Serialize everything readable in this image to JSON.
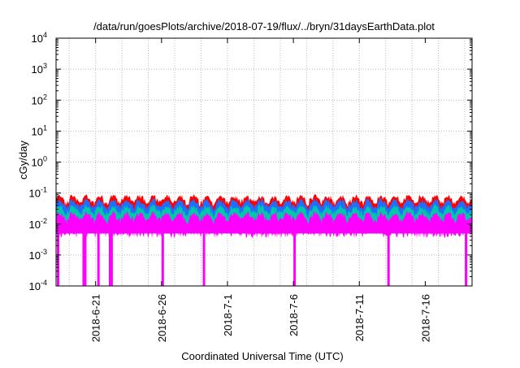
{
  "chart_data": {
    "type": "area",
    "title": "/data/run/goesPlots/archive/2018-07-19/flux/../bryn/31daysEarthData.plot",
    "xlabel": "Coordinated Universal Time (UTC)",
    "ylabel": "cGy/day",
    "y_scale": "log",
    "ylim": [
      0.0001,
      10000
    ],
    "y_ticks": [
      {
        "value": 0.0001,
        "base": "10",
        "exp": "-4"
      },
      {
        "value": 0.001,
        "base": "10",
        "exp": "-3"
      },
      {
        "value": 0.01,
        "base": "10",
        "exp": "-2"
      },
      {
        "value": 0.1,
        "base": "10",
        "exp": "-1"
      },
      {
        "value": 1,
        "base": "10",
        "exp": "0"
      },
      {
        "value": 10,
        "base": "10",
        "exp": "1"
      },
      {
        "value": 100,
        "base": "10",
        "exp": "2"
      },
      {
        "value": 1000,
        "base": "10",
        "exp": "3"
      },
      {
        "value": 10000,
        "base": "10",
        "exp": "4"
      }
    ],
    "xlim": [
      "2018-06-18",
      "2018-07-19"
    ],
    "x_ticks": [
      "2018-6-21",
      "2018-6-26",
      "2018-7-1",
      "2018-7-6",
      "2018-7-11",
      "2018-7-16"
    ],
    "x_tick_dates": [
      "2018-06-21",
      "2018-06-26",
      "2018-07-01",
      "2018-07-06",
      "2018-07-11",
      "2018-07-16"
    ],
    "x_tick_label_rotation": "vertical",
    "grid": true,
    "legend": "none",
    "colors": [
      "#ff0000",
      "#1f6fff",
      "#00c8a8",
      "#ff00ff"
    ],
    "series": [
      {
        "color": "#ff0000",
        "typical": 0.055,
        "max": 0.09
      },
      {
        "color": "#1f6fff",
        "typical": 0.04,
        "max": 0.07
      },
      {
        "color": "#00c8a8",
        "typical": 0.025,
        "max": 0.045
      },
      {
        "color": "#ff00ff",
        "typical": 0.015,
        "max": 0.035,
        "floor": 0.005,
        "dropouts": [
          "2018-06-18",
          "2018-06-20",
          "2018-06-20",
          "2018-06-21",
          "2018-06-22",
          "2018-06-22",
          "2018-06-26",
          "2018-06-29",
          "2018-07-06",
          "2018-07-13",
          "2018-07-19"
        ]
      }
    ]
  }
}
